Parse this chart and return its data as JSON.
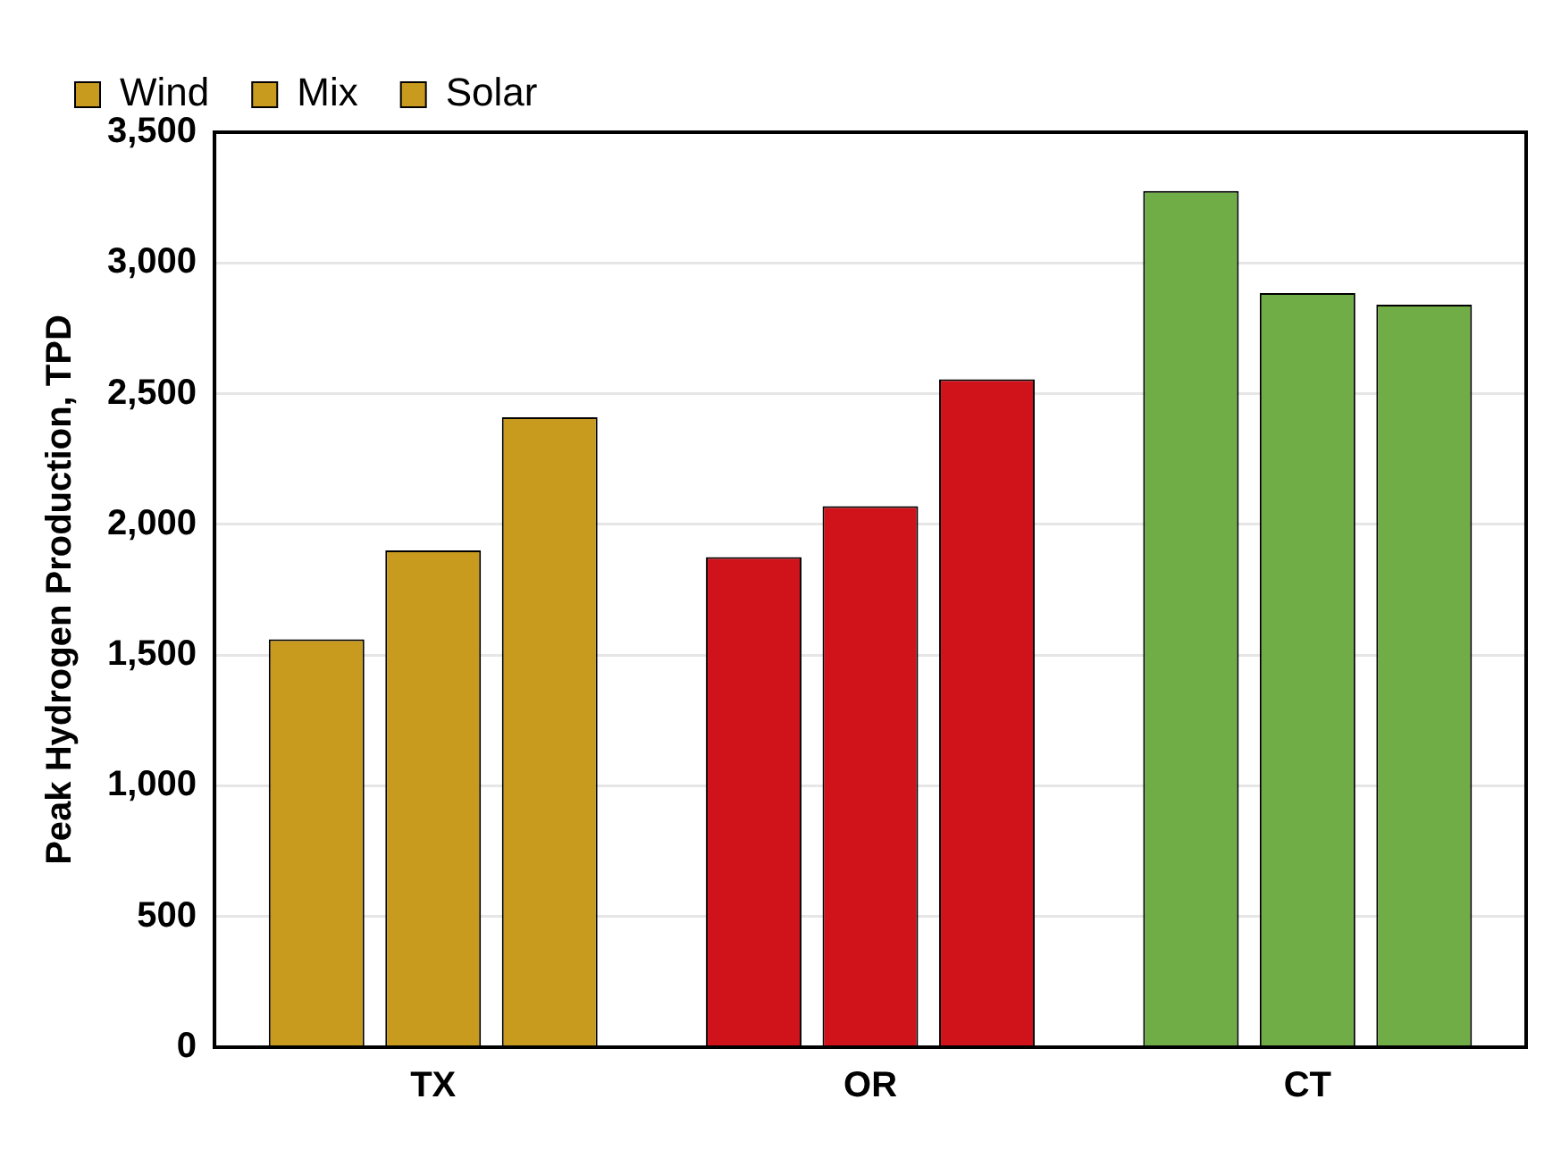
{
  "chart_data": {
    "type": "bar",
    "ylabel": "Peak Hydrogen Production, TPD",
    "categories": [
      "TX",
      "OR",
      "CT"
    ],
    "series": [
      {
        "name": "Wind",
        "colors": [
          "#c89a1e",
          "#d0121b",
          "#70ad47"
        ],
        "values": [
          1560,
          1875,
          3275
        ]
      },
      {
        "name": "Mix",
        "colors": [
          "#c89a1e",
          "#d0121b",
          "#70ad47"
        ],
        "values": [
          1900,
          2070,
          2885
        ]
      },
      {
        "name": "Solar",
        "colors": [
          "#c89a1e",
          "#d0121b",
          "#70ad47"
        ],
        "values": [
          2410,
          2555,
          2840
        ]
      }
    ],
    "ylim": [
      0,
      3500
    ],
    "yticks": [
      {
        "value": 0,
        "label": "0"
      },
      {
        "value": 500,
        "label": "500"
      },
      {
        "value": 1000,
        "label": "1,000"
      },
      {
        "value": 1500,
        "label": "1,500"
      },
      {
        "value": 2000,
        "label": "2,000"
      },
      {
        "value": 2500,
        "label": "2,500"
      },
      {
        "value": 3000,
        "label": "3,000"
      },
      {
        "value": 3500,
        "label": "3,500"
      }
    ],
    "grid": "y",
    "legend": "top left"
  }
}
